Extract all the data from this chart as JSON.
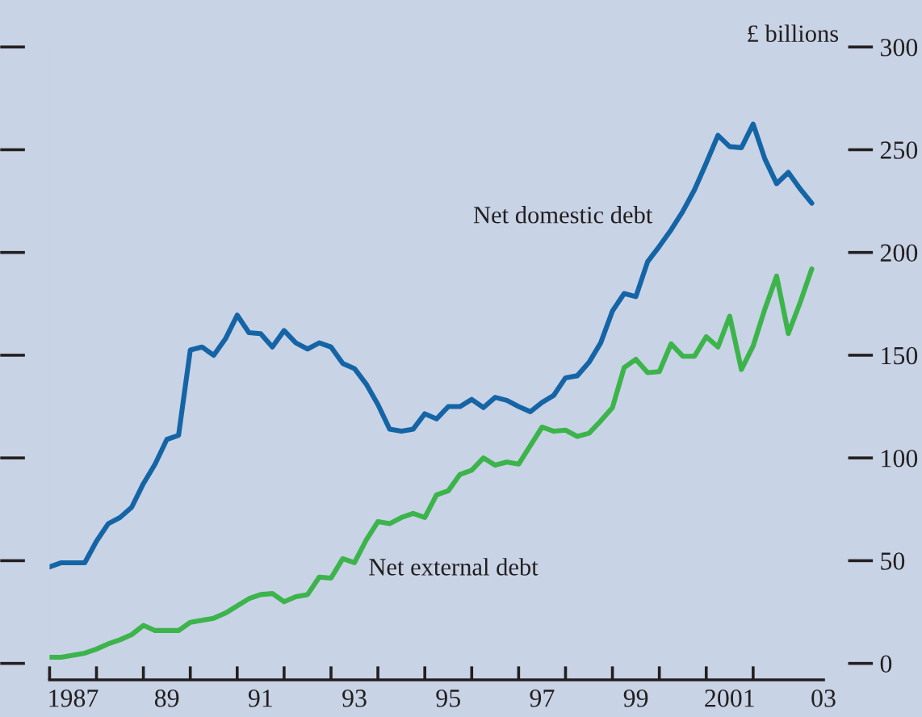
{
  "chart_data": {
    "type": "line",
    "ylabel": "£ billions",
    "x": [
      1986.5,
      1986.75,
      1987.0,
      1987.25,
      1987.5,
      1987.75,
      1988.0,
      1988.25,
      1988.5,
      1988.75,
      1989.0,
      1989.25,
      1989.5,
      1989.75,
      1990.0,
      1990.25,
      1990.5,
      1990.75,
      1991.0,
      1991.25,
      1991.5,
      1991.75,
      1992.0,
      1992.25,
      1992.5,
      1992.75,
      1993.0,
      1993.25,
      1993.5,
      1993.75,
      1994.0,
      1994.25,
      1994.5,
      1994.75,
      1995.0,
      1995.25,
      1995.5,
      1995.75,
      1996.0,
      1996.25,
      1996.5,
      1996.75,
      1997.0,
      1997.25,
      1997.5,
      1997.75,
      1998.0,
      1998.25,
      1998.5,
      1998.75,
      1999.0,
      1999.25,
      1999.5,
      1999.75,
      2000.0,
      2000.25,
      2000.5,
      2000.75,
      2001.0,
      2001.25,
      2001.5,
      2001.75,
      2002.0,
      2002.25,
      2002.5,
      2002.75
    ],
    "series": [
      {
        "name": "Net domestic debt",
        "color": "#1565a6",
        "values": [
          47,
          49,
          49,
          49,
          59.5,
          68,
          71,
          76,
          87.5,
          97,
          109,
          111,
          152.5,
          154,
          150,
          158,
          169.5,
          161,
          160.5,
          154,
          162,
          156,
          153,
          156,
          154,
          146,
          143.5,
          136,
          126,
          114,
          113,
          114,
          121.5,
          119,
          125,
          125,
          128.5,
          124.5,
          129.5,
          128,
          125,
          122.5,
          127,
          130.5,
          139,
          140,
          146.5,
          156,
          171.5,
          180,
          178.5,
          195.5,
          203,
          211,
          220,
          230.5,
          243.5,
          257,
          251.5,
          251,
          262.5,
          245.5,
          233.5,
          239,
          231,
          224
        ]
      },
      {
        "name": "Net external debt",
        "color": "#3cb44b",
        "values": [
          3,
          3,
          4,
          5,
          7,
          9.5,
          11.5,
          14,
          18.5,
          16,
          16,
          16,
          20,
          21,
          22,
          24.5,
          28,
          31.5,
          33.5,
          34,
          30,
          32.5,
          33.5,
          42,
          41.5,
          51,
          49,
          60,
          69,
          68,
          71,
          73,
          71,
          82,
          84,
          92,
          94,
          100,
          96.5,
          98,
          97,
          106,
          115,
          113,
          113.5,
          110.5,
          112,
          118,
          124.5,
          144,
          148,
          141.5,
          142,
          155.5,
          149.5,
          149.5,
          159,
          154,
          169,
          143,
          154.5,
          172.5,
          188.5,
          160.5,
          175.5,
          192
        ]
      }
    ],
    "xlim": [
      1986.5,
      2003
    ],
    "xticks": [
      {
        "value": 1986.5,
        "label": null
      },
      {
        "value": 1987.5,
        "label": null
      },
      {
        "value": 1988.5,
        "label": null
      },
      {
        "value": 1989.5,
        "label": null
      },
      {
        "value": 1990.5,
        "label": null
      },
      {
        "value": 1991.5,
        "label": null
      },
      {
        "value": 1992.5,
        "label": null
      },
      {
        "value": 1993.5,
        "label": null
      },
      {
        "value": 1994.5,
        "label": null
      },
      {
        "value": 1995.5,
        "label": null
      },
      {
        "value": 1996.5,
        "label": null
      },
      {
        "value": 1997.5,
        "label": null
      },
      {
        "value": 1998.5,
        "label": null
      },
      {
        "value": 1999.5,
        "label": null
      },
      {
        "value": 2000.5,
        "label": null
      },
      {
        "value": 2001.5,
        "label": null
      },
      1987,
      {
        "value": 1989,
        "label": "89"
      },
      {
        "value": 1991,
        "label": "91"
      },
      {
        "value": 1993,
        "label": "93"
      },
      {
        "value": 1995,
        "label": "95"
      },
      {
        "value": 1997,
        "label": "97"
      },
      {
        "value": 1999,
        "label": "99"
      },
      {
        "value": 2001,
        "label": "2001"
      },
      {
        "value": 2003,
        "label": "03"
      }
    ],
    "ylim": [
      -8,
      300
    ],
    "yticks": [
      0,
      50,
      100,
      150,
      200,
      250,
      300
    ],
    "grid": false,
    "legend": false,
    "marker": "none",
    "line_style": "solid"
  }
}
